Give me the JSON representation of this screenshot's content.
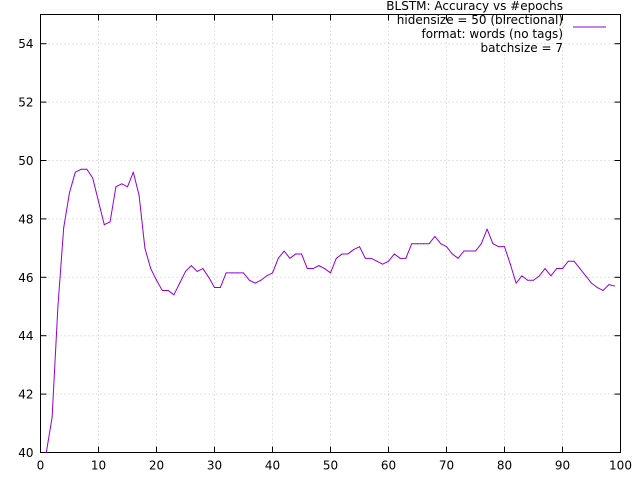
{
  "chart_data": {
    "type": "line",
    "title": "",
    "xlabel": "",
    "ylabel": "",
    "xlim": [
      0,
      100
    ],
    "ylim": [
      40,
      55
    ],
    "xticks": [
      0,
      10,
      20,
      30,
      40,
      50,
      60,
      70,
      80,
      90,
      100
    ],
    "yticks": [
      40,
      42,
      44,
      46,
      48,
      50,
      52,
      54
    ],
    "grid": true,
    "legend_position": "top-right",
    "legend_lines": [
      "BLSTM: Accuracy vs #epochs",
      "hidensize = 50 (birectional)",
      "format: words (no tags)",
      "batchsize = 7"
    ],
    "series": [
      {
        "color": "#9400d3",
        "x": [
          1,
          2,
          3,
          4,
          5,
          6,
          7,
          8,
          9,
          10,
          11,
          12,
          13,
          14,
          15,
          16,
          17,
          18,
          19,
          20,
          21,
          22,
          23,
          24,
          25,
          26,
          27,
          28,
          29,
          30,
          31,
          32,
          33,
          34,
          35,
          36,
          37,
          38,
          39,
          40,
          41,
          42,
          43,
          44,
          45,
          46,
          47,
          48,
          49,
          50,
          51,
          52,
          53,
          54,
          55,
          56,
          57,
          58,
          59,
          60,
          61,
          62,
          63,
          64,
          65,
          66,
          67,
          68,
          69,
          70,
          71,
          72,
          73,
          74,
          75,
          76,
          77,
          78,
          79,
          80,
          81,
          82,
          83,
          84,
          85,
          86,
          87,
          88,
          89,
          90,
          91,
          92,
          93,
          94,
          95,
          96,
          97,
          98,
          99
        ],
        "y": [
          40.0,
          41.2,
          45.0,
          47.7,
          48.9,
          49.6,
          49.7,
          49.7,
          49.4,
          48.6,
          47.8,
          47.9,
          49.1,
          49.2,
          49.1,
          49.6,
          48.8,
          47.0,
          46.3,
          45.9,
          45.55,
          45.55,
          45.4,
          45.8,
          46.2,
          46.4,
          46.2,
          46.3,
          46.0,
          45.65,
          45.65,
          46.15,
          46.15,
          46.15,
          46.15,
          45.9,
          45.8,
          45.9,
          46.05,
          46.15,
          46.65,
          46.9,
          46.65,
          46.8,
          46.8,
          46.3,
          46.3,
          46.4,
          46.3,
          46.15,
          46.65,
          46.8,
          46.8,
          46.95,
          47.05,
          46.65,
          46.65,
          46.55,
          46.45,
          46.55,
          46.8,
          46.65,
          46.65,
          47.15,
          47.15,
          47.15,
          47.15,
          47.4,
          47.15,
          47.05,
          46.8,
          46.65,
          46.9,
          46.9,
          46.9,
          47.15,
          47.65,
          47.15,
          47.05,
          47.05,
          46.45,
          45.8,
          46.05,
          45.9,
          45.9,
          46.05,
          46.3,
          46.05,
          46.3,
          46.3,
          46.55,
          46.55,
          46.3,
          46.05,
          45.8,
          45.65,
          45.55,
          45.75,
          45.7
        ]
      }
    ]
  }
}
